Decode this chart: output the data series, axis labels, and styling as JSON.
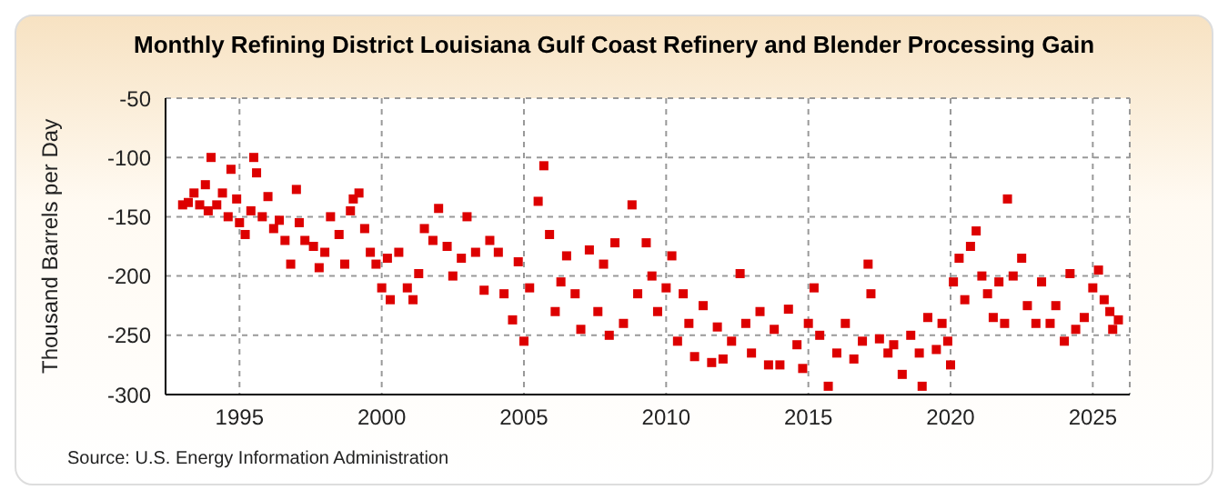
{
  "chart_data": {
    "type": "scatter",
    "title": "Monthly Refining District Louisiana Gulf Coast Refinery and Blender Processing Gain",
    "ylabel": "Thousand Barrels per Day",
    "annotations": [
      "Source: U.S. Energy Information Administration"
    ],
    "xlim": [
      1992.4,
      2026.3
    ],
    "xticks": [
      1995,
      2000,
      2005,
      2010,
      2015,
      2020,
      2025
    ],
    "ylim": [
      -300,
      -50
    ],
    "yticks": [
      -300,
      -250,
      -200,
      -150,
      -100,
      -50
    ],
    "grid": true,
    "marker": "square",
    "series": [
      {
        "color": "#dd0000",
        "x": [
          1993.0,
          1993.2,
          1993.4,
          1993.6,
          1993.8,
          1993.9,
          1994.0,
          1994.2,
          1994.4,
          1994.6,
          1994.7,
          1994.9,
          1995.0,
          1995.2,
          1995.4,
          1995.5,
          1995.6,
          1995.8,
          1996.0,
          1996.2,
          1996.4,
          1996.6,
          1996.8,
          1997.0,
          1997.1,
          1997.3,
          1997.6,
          1997.8,
          1998.0,
          1998.2,
          1998.5,
          1998.7,
          1998.9,
          1999.0,
          1999.2,
          1999.4,
          1999.6,
          1999.8,
          2000.0,
          2000.2,
          2000.3,
          2000.6,
          2000.9,
          2001.1,
          2001.3,
          2001.5,
          2001.8,
          2002.0,
          2002.3,
          2002.5,
          2002.8,
          2003.0,
          2003.3,
          2003.6,
          2003.8,
          2004.1,
          2004.3,
          2004.6,
          2004.8,
          2005.0,
          2005.2,
          2005.5,
          2005.7,
          2005.9,
          2006.1,
          2006.3,
          2006.5,
          2006.8,
          2007.0,
          2007.3,
          2007.6,
          2007.8,
          2008.0,
          2008.2,
          2008.5,
          2008.8,
          2009.0,
          2009.3,
          2009.5,
          2009.7,
          2010.0,
          2010.2,
          2010.4,
          2010.6,
          2010.8,
          2011.0,
          2011.3,
          2011.6,
          2011.8,
          2012.0,
          2012.3,
          2012.6,
          2012.8,
          2013.0,
          2013.3,
          2013.6,
          2013.8,
          2014.0,
          2014.3,
          2014.6,
          2014.8,
          2015.0,
          2015.2,
          2015.4,
          2015.7,
          2016.0,
          2016.3,
          2016.6,
          2016.9,
          2017.1,
          2017.2,
          2017.5,
          2017.8,
          2018.0,
          2018.3,
          2018.6,
          2018.9,
          2019.0,
          2019.2,
          2019.5,
          2019.7,
          2019.9,
          2020.0,
          2020.1,
          2020.3,
          2020.5,
          2020.7,
          2020.9,
          2021.1,
          2021.3,
          2021.5,
          2021.7,
          2021.9,
          2022.0,
          2022.2,
          2022.5,
          2022.7,
          2023.0,
          2023.2,
          2023.5,
          2023.7,
          2024.0,
          2024.2,
          2024.4,
          2024.7,
          2025.0,
          2025.2,
          2025.4,
          2025.6,
          2025.7,
          2025.9
        ],
        "values": [
          -140,
          -138,
          -130,
          -140,
          -123,
          -145,
          -100,
          -140,
          -130,
          -150,
          -110,
          -135,
          -155,
          -165,
          -145,
          -100,
          -113,
          -150,
          -133,
          -160,
          -153,
          -170,
          -190,
          -127,
          -155,
          -170,
          -175,
          -193,
          -180,
          -150,
          -165,
          -190,
          -145,
          -135,
          -130,
          -160,
          -180,
          -190,
          -210,
          -185,
          -220,
          -180,
          -210,
          -220,
          -198,
          -160,
          -170,
          -143,
          -175,
          -200,
          -185,
          -150,
          -180,
          -212,
          -170,
          -180,
          -215,
          -237,
          -188,
          -255,
          -210,
          -137,
          -107,
          -165,
          -230,
          -205,
          -183,
          -215,
          -245,
          -178,
          -230,
          -190,
          -250,
          -172,
          -240,
          -140,
          -215,
          -172,
          -200,
          -230,
          -210,
          -183,
          -255,
          -215,
          -240,
          -268,
          -225,
          -273,
          -243,
          -270,
          -255,
          -198,
          -240,
          -265,
          -230,
          -275,
          -245,
          -275,
          -228,
          -258,
          -278,
          -240,
          -210,
          -250,
          -293,
          -265,
          -240,
          -270,
          -255,
          -190,
          -215,
          -253,
          -265,
          -258,
          -283,
          -250,
          -265,
          -293,
          -235,
          -262,
          -240,
          -255,
          -275,
          -205,
          -185,
          -220,
          -175,
          -162,
          -200,
          -215,
          -235,
          -205,
          -240,
          -135,
          -200,
          -185,
          -225,
          -240,
          -205,
          -240,
          -225,
          -255,
          -198,
          -245,
          -235,
          -210,
          -195,
          -220,
          -230,
          -245,
          -237
        ]
      }
    ]
  }
}
